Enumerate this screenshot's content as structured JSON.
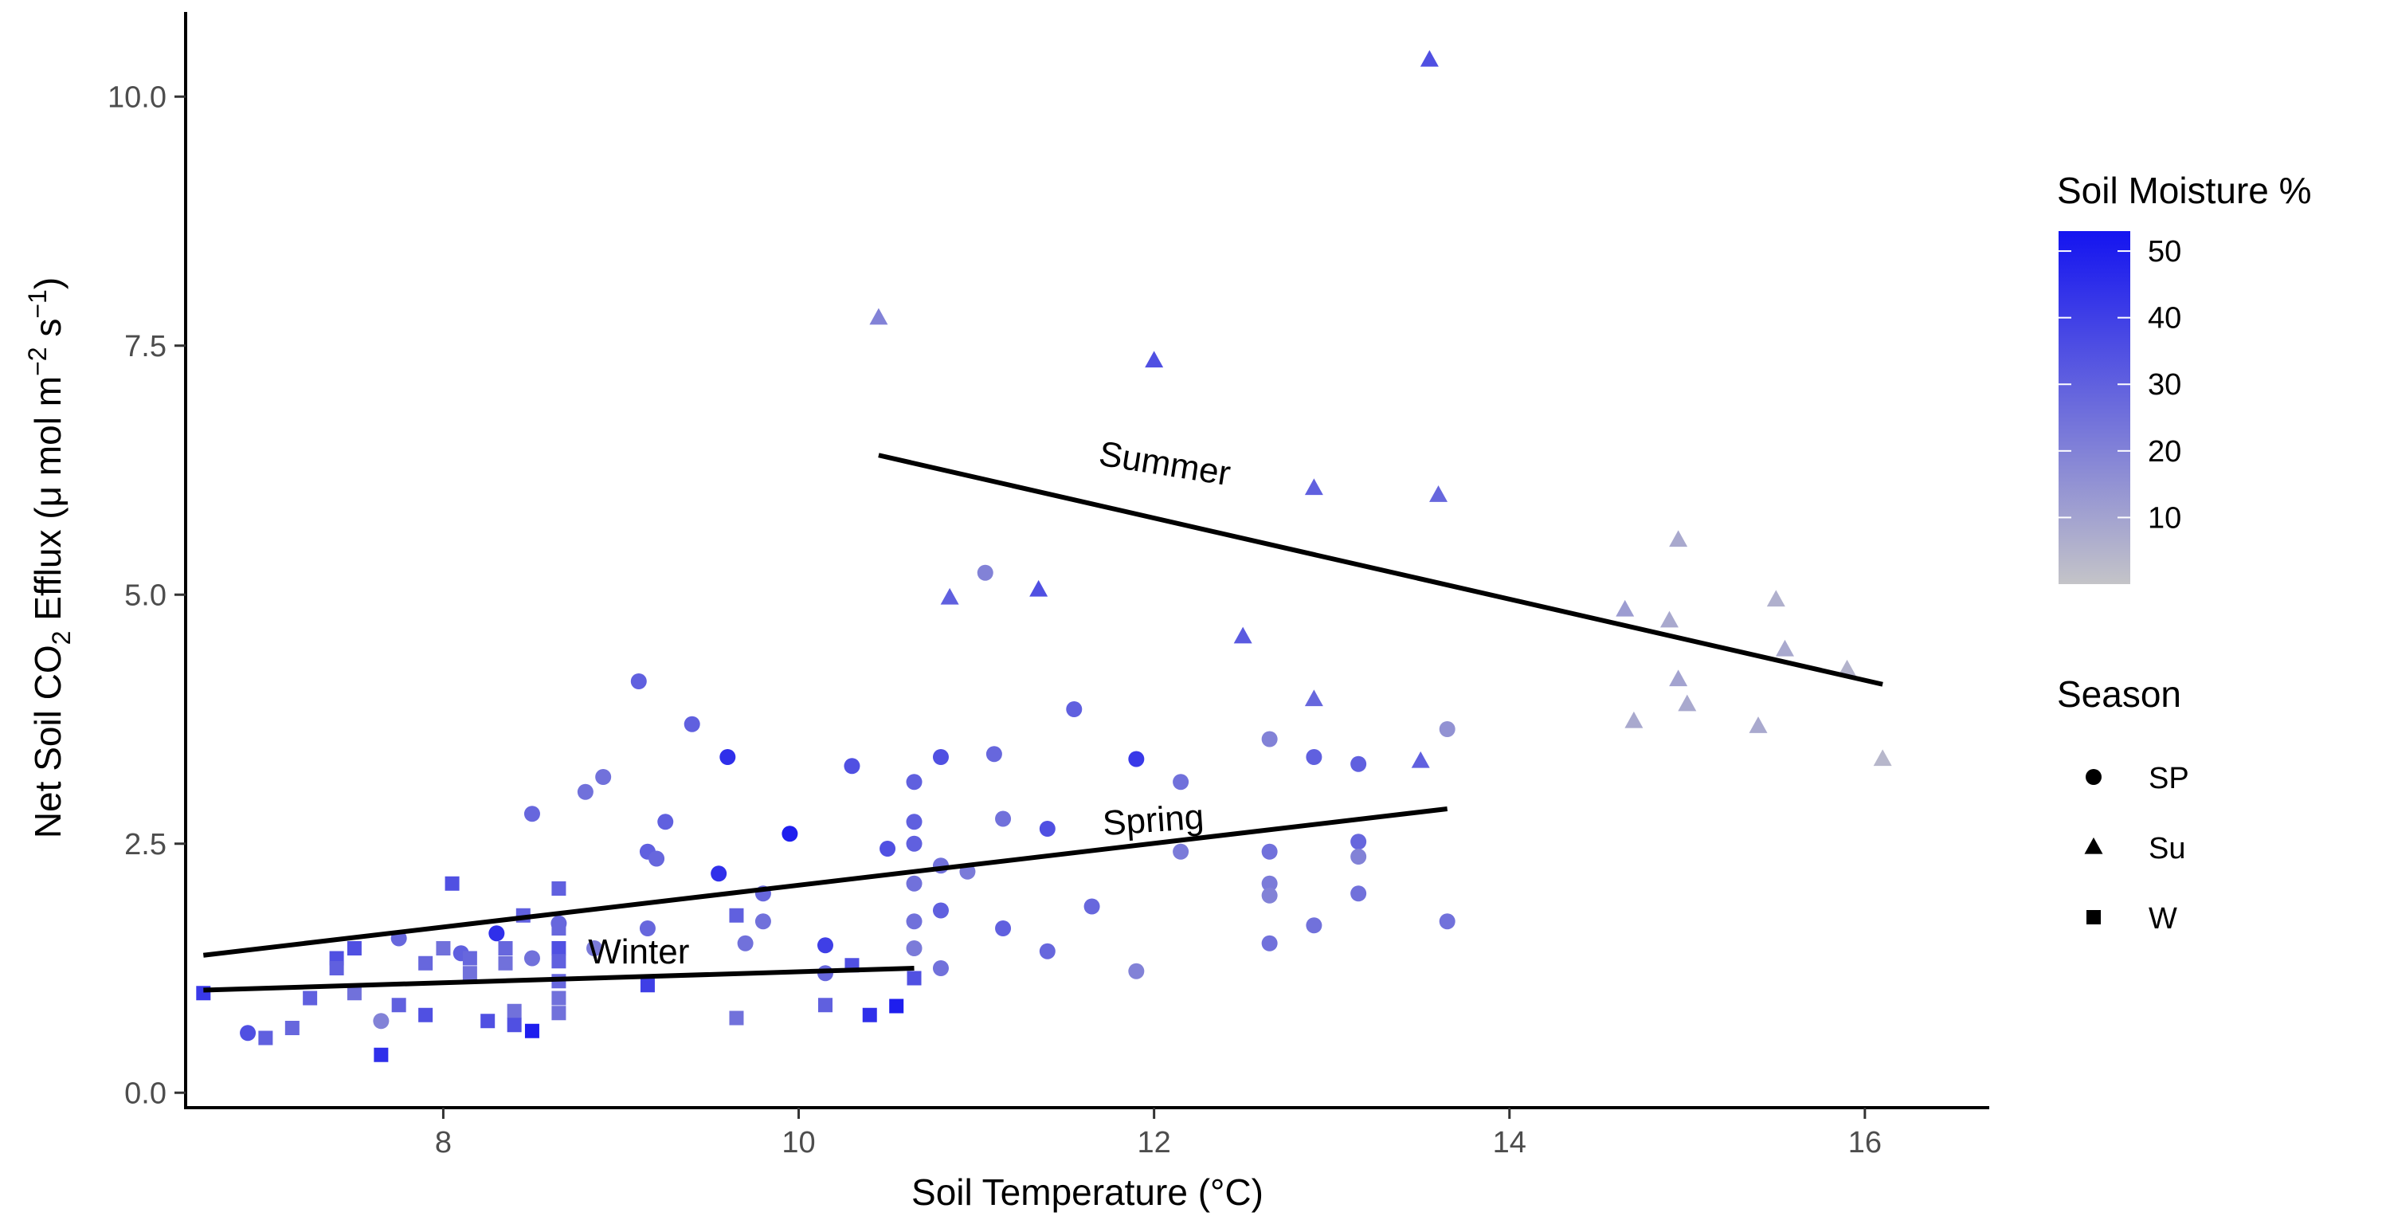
{
  "chart_data": {
    "type": "scatter",
    "xlabel": "Soil Temperature (°C)",
    "ylabel": {
      "prefix": "Net Soil  CO",
      "co2_sub": "2",
      "middle": " Efflux (μ mol m",
      "m_sup": "−2",
      "s_text": " s",
      "s_sup": "−1",
      "suffix": ")"
    },
    "xlim": [
      6.55,
      16.7
    ],
    "ylim": [
      -0.15,
      10.85
    ],
    "x_ticks": [
      8,
      10,
      12,
      14,
      16
    ],
    "x_tick_labels": [
      "8",
      "10",
      "12",
      "14",
      "16"
    ],
    "y_ticks": [
      0,
      2.5,
      5,
      7.5,
      10
    ],
    "y_tick_labels": [
      "0.0",
      "2.5",
      "5.0",
      "7.5",
      "10.0"
    ],
    "color_legend": {
      "title": "Soil Moisture %",
      "min": 0,
      "max": 53,
      "low_color": "#c4c4c8",
      "high_color": "#1414f0",
      "ticks": [
        10,
        20,
        30,
        40,
        50
      ],
      "tick_labels": [
        "10",
        "20",
        "30",
        "40",
        "50"
      ]
    },
    "shape_legend": {
      "title": "Season",
      "entries": [
        {
          "shape": "circle",
          "label": "SP"
        },
        {
          "shape": "triangle",
          "label": "Su"
        },
        {
          "shape": "square",
          "label": "W"
        }
      ]
    },
    "regression_lines": [
      {
        "name": "Summer",
        "x": [
          10.45,
          16.1
        ],
        "y": [
          6.4,
          4.1
        ]
      },
      {
        "name": "Spring",
        "x": [
          6.65,
          13.65
        ],
        "y": [
          1.38,
          2.85
        ]
      },
      {
        "name": "Winter",
        "x": [
          6.65,
          10.65
        ],
        "y": [
          1.03,
          1.25
        ]
      }
    ],
    "line_labels": [
      {
        "text": "Summer",
        "x": 12.05,
        "y": 6.2,
        "angle": 9
      },
      {
        "text": "Spring",
        "x": 12.0,
        "y": 2.62,
        "angle": -4
      },
      {
        "text": "Winter",
        "x": 9.1,
        "y": 1.3,
        "angle": 0
      }
    ],
    "series": [
      {
        "name": "SP",
        "shape": "circle",
        "points": [
          {
            "x": 6.9,
            "y": 0.6,
            "m": 35
          },
          {
            "x": 7.65,
            "y": 0.72,
            "m": 20
          },
          {
            "x": 7.75,
            "y": 1.55,
            "m": 28
          },
          {
            "x": 8.1,
            "y": 1.4,
            "m": 30
          },
          {
            "x": 8.3,
            "y": 1.6,
            "m": 45
          },
          {
            "x": 8.5,
            "y": 2.8,
            "m": 28
          },
          {
            "x": 8.5,
            "y": 1.35,
            "m": 25
          },
          {
            "x": 8.65,
            "y": 1.7,
            "m": 28
          },
          {
            "x": 8.8,
            "y": 3.02,
            "m": 25
          },
          {
            "x": 8.85,
            "y": 1.45,
            "m": 22
          },
          {
            "x": 8.9,
            "y": 3.17,
            "m": 25
          },
          {
            "x": 9.1,
            "y": 4.13,
            "m": 30
          },
          {
            "x": 9.15,
            "y": 2.42,
            "m": 30
          },
          {
            "x": 9.15,
            "y": 1.65,
            "m": 28
          },
          {
            "x": 9.2,
            "y": 2.35,
            "m": 28
          },
          {
            "x": 9.25,
            "y": 2.72,
            "m": 30
          },
          {
            "x": 9.4,
            "y": 3.7,
            "m": 30
          },
          {
            "x": 9.55,
            "y": 2.2,
            "m": 45
          },
          {
            "x": 9.6,
            "y": 3.37,
            "m": 45
          },
          {
            "x": 9.7,
            "y": 1.5,
            "m": 25
          },
          {
            "x": 9.8,
            "y": 2.0,
            "m": 28
          },
          {
            "x": 9.8,
            "y": 1.72,
            "m": 25
          },
          {
            "x": 9.95,
            "y": 2.6,
            "m": 50
          },
          {
            "x": 10.15,
            "y": 1.48,
            "m": 40
          },
          {
            "x": 10.15,
            "y": 1.2,
            "m": 28
          },
          {
            "x": 10.3,
            "y": 3.28,
            "m": 35
          },
          {
            "x": 10.5,
            "y": 2.45,
            "m": 35
          },
          {
            "x": 10.65,
            "y": 3.12,
            "m": 30
          },
          {
            "x": 10.65,
            "y": 2.72,
            "m": 30
          },
          {
            "x": 10.65,
            "y": 2.5,
            "m": 30
          },
          {
            "x": 10.65,
            "y": 2.1,
            "m": 25
          },
          {
            "x": 10.65,
            "y": 1.72,
            "m": 25
          },
          {
            "x": 10.65,
            "y": 1.45,
            "m": 22
          },
          {
            "x": 10.8,
            "y": 3.37,
            "m": 35
          },
          {
            "x": 10.8,
            "y": 2.28,
            "m": 25
          },
          {
            "x": 10.8,
            "y": 1.83,
            "m": 30
          },
          {
            "x": 10.8,
            "y": 1.25,
            "m": 25
          },
          {
            "x": 10.95,
            "y": 2.22,
            "m": 22
          },
          {
            "x": 11.05,
            "y": 5.22,
            "m": 20
          },
          {
            "x": 11.1,
            "y": 3.4,
            "m": 28
          },
          {
            "x": 11.15,
            "y": 2.75,
            "m": 25
          },
          {
            "x": 11.15,
            "y": 1.65,
            "m": 30
          },
          {
            "x": 11.4,
            "y": 2.65,
            "m": 35
          },
          {
            "x": 11.4,
            "y": 1.42,
            "m": 28
          },
          {
            "x": 11.55,
            "y": 3.85,
            "m": 30
          },
          {
            "x": 11.65,
            "y": 1.87,
            "m": 28
          },
          {
            "x": 11.9,
            "y": 3.35,
            "m": 42
          },
          {
            "x": 11.9,
            "y": 1.22,
            "m": 20
          },
          {
            "x": 12.15,
            "y": 3.12,
            "m": 25
          },
          {
            "x": 12.15,
            "y": 2.42,
            "m": 22
          },
          {
            "x": 12.65,
            "y": 3.55,
            "m": 20
          },
          {
            "x": 12.65,
            "y": 2.42,
            "m": 25
          },
          {
            "x": 12.65,
            "y": 2.1,
            "m": 22
          },
          {
            "x": 12.65,
            "y": 1.98,
            "m": 20
          },
          {
            "x": 12.65,
            "y": 1.5,
            "m": 25
          },
          {
            "x": 12.9,
            "y": 3.37,
            "m": 30
          },
          {
            "x": 12.9,
            "y": 1.68,
            "m": 25
          },
          {
            "x": 13.15,
            "y": 3.3,
            "m": 30
          },
          {
            "x": 13.15,
            "y": 2.52,
            "m": 28
          },
          {
            "x": 13.15,
            "y": 2.37,
            "m": 20
          },
          {
            "x": 13.15,
            "y": 2.0,
            "m": 25
          },
          {
            "x": 13.65,
            "y": 3.65,
            "m": 15
          },
          {
            "x": 13.65,
            "y": 1.72,
            "m": 25
          }
        ]
      },
      {
        "name": "Su",
        "shape": "triangle",
        "points": [
          {
            "x": 10.45,
            "y": 7.78,
            "m": 20
          },
          {
            "x": 10.85,
            "y": 4.97,
            "m": 30
          },
          {
            "x": 11.35,
            "y": 5.05,
            "m": 35
          },
          {
            "x": 12.0,
            "y": 7.35,
            "m": 35
          },
          {
            "x": 12.5,
            "y": 4.58,
            "m": 32
          },
          {
            "x": 12.9,
            "y": 6.07,
            "m": 30
          },
          {
            "x": 12.9,
            "y": 3.95,
            "m": 28
          },
          {
            "x": 13.5,
            "y": 3.33,
            "m": 30
          },
          {
            "x": 13.55,
            "y": 10.37,
            "m": 35
          },
          {
            "x": 13.6,
            "y": 6.0,
            "m": 28
          },
          {
            "x": 14.65,
            "y": 4.85,
            "m": 12
          },
          {
            "x": 14.7,
            "y": 3.73,
            "m": 8
          },
          {
            "x": 14.9,
            "y": 4.74,
            "m": 8
          },
          {
            "x": 14.95,
            "y": 5.55,
            "m": 8
          },
          {
            "x": 14.95,
            "y": 4.15,
            "m": 10
          },
          {
            "x": 15.0,
            "y": 3.9,
            "m": 8
          },
          {
            "x": 15.4,
            "y": 3.68,
            "m": 8
          },
          {
            "x": 15.5,
            "y": 4.95,
            "m": 6
          },
          {
            "x": 15.55,
            "y": 4.45,
            "m": 8
          },
          {
            "x": 15.9,
            "y": 4.25,
            "m": 5
          },
          {
            "x": 16.1,
            "y": 3.35,
            "m": 4
          }
        ]
      },
      {
        "name": "W",
        "shape": "square",
        "points": [
          {
            "x": 6.65,
            "y": 1.0,
            "m": 42
          },
          {
            "x": 7.0,
            "y": 0.55,
            "m": 30
          },
          {
            "x": 7.15,
            "y": 0.65,
            "m": 28
          },
          {
            "x": 7.25,
            "y": 0.95,
            "m": 30
          },
          {
            "x": 7.4,
            "y": 1.35,
            "m": 35
          },
          {
            "x": 7.4,
            "y": 1.25,
            "m": 30
          },
          {
            "x": 7.5,
            "y": 1.45,
            "m": 35
          },
          {
            "x": 7.5,
            "y": 1.0,
            "m": 25
          },
          {
            "x": 7.65,
            "y": 0.38,
            "m": 45
          },
          {
            "x": 7.75,
            "y": 0.88,
            "m": 30
          },
          {
            "x": 7.9,
            "y": 1.3,
            "m": 28
          },
          {
            "x": 7.9,
            "y": 0.78,
            "m": 35
          },
          {
            "x": 8.0,
            "y": 1.45,
            "m": 25
          },
          {
            "x": 8.05,
            "y": 2.1,
            "m": 35
          },
          {
            "x": 8.15,
            "y": 1.35,
            "m": 28
          },
          {
            "x": 8.15,
            "y": 1.2,
            "m": 25
          },
          {
            "x": 8.25,
            "y": 0.72,
            "m": 35
          },
          {
            "x": 8.35,
            "y": 1.45,
            "m": 28
          },
          {
            "x": 8.35,
            "y": 1.3,
            "m": 25
          },
          {
            "x": 8.4,
            "y": 0.82,
            "m": 25
          },
          {
            "x": 8.4,
            "y": 0.68,
            "m": 35
          },
          {
            "x": 8.45,
            "y": 1.78,
            "m": 30
          },
          {
            "x": 8.5,
            "y": 0.62,
            "m": 50
          },
          {
            "x": 8.65,
            "y": 2.05,
            "m": 30
          },
          {
            "x": 8.65,
            "y": 1.65,
            "m": 28
          },
          {
            "x": 8.65,
            "y": 1.45,
            "m": 35
          },
          {
            "x": 8.65,
            "y": 1.32,
            "m": 30
          },
          {
            "x": 8.65,
            "y": 1.12,
            "m": 28
          },
          {
            "x": 8.65,
            "y": 0.95,
            "m": 25
          },
          {
            "x": 8.65,
            "y": 0.8,
            "m": 25
          },
          {
            "x": 9.15,
            "y": 1.08,
            "m": 40
          },
          {
            "x": 9.65,
            "y": 1.78,
            "m": 30
          },
          {
            "x": 9.65,
            "y": 0.75,
            "m": 25
          },
          {
            "x": 10.15,
            "y": 0.88,
            "m": 30
          },
          {
            "x": 10.3,
            "y": 1.28,
            "m": 35
          },
          {
            "x": 10.4,
            "y": 0.78,
            "m": 45
          },
          {
            "x": 10.55,
            "y": 0.87,
            "m": 50
          },
          {
            "x": 10.65,
            "y": 1.15,
            "m": 35
          }
        ]
      }
    ]
  }
}
